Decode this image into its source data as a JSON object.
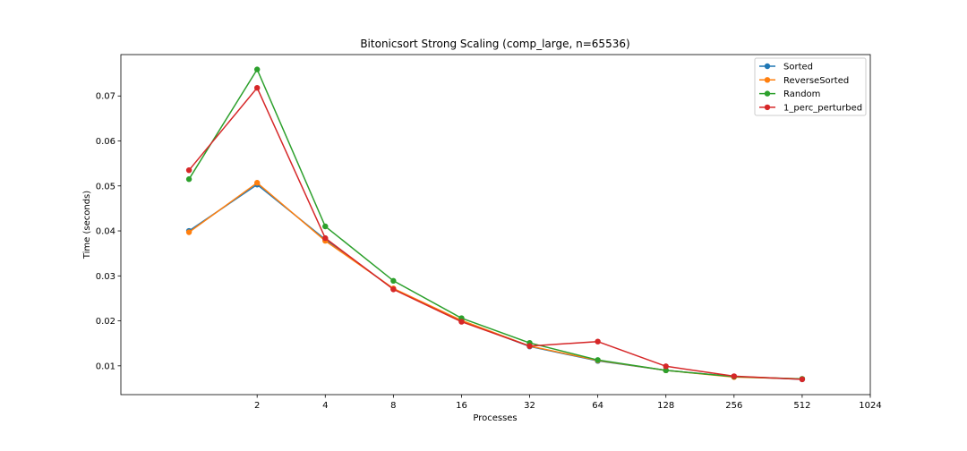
{
  "chart_data": {
    "type": "line",
    "title": "Bitonicsort Strong Scaling (comp_large, n=65536)",
    "xlabel": "Processes",
    "ylabel": "Time (seconds)",
    "x_scale": "log2",
    "xlim": [
      0.5,
      1024
    ],
    "ylim": [
      0.0036,
      0.0792
    ],
    "x_ticks": [
      2,
      4,
      8,
      16,
      32,
      64,
      128,
      256,
      512,
      1024
    ],
    "x_tick_labels": [
      "2",
      "4",
      "8",
      "16",
      "32",
      "64",
      "128",
      "256",
      "512",
      "1024"
    ],
    "y_ticks": [
      0.01,
      0.02,
      0.03,
      0.04,
      0.05,
      0.06,
      0.07
    ],
    "y_tick_labels": [
      "0.01",
      "0.02",
      "0.03",
      "0.04",
      "0.05",
      "0.06",
      "0.07"
    ],
    "grid": false,
    "legend_position": "top-right",
    "x": [
      1,
      2,
      4,
      8,
      16,
      32,
      64,
      128,
      256,
      512
    ],
    "series": [
      {
        "name": "Sorted",
        "color": "#1f77b4",
        "values": [
          0.04,
          0.0503,
          0.0381,
          0.0271,
          0.02,
          0.0143,
          0.0111,
          0.009,
          0.0076,
          0.007
        ]
      },
      {
        "name": "ReverseSorted",
        "color": "#ff7f0e",
        "values": [
          0.0397,
          0.0507,
          0.0378,
          0.0272,
          0.0201,
          0.0144,
          0.0112,
          0.009,
          0.0075,
          0.0071
        ]
      },
      {
        "name": "Random",
        "color": "#2ca02c",
        "values": [
          0.0515,
          0.0759,
          0.041,
          0.0289,
          0.0206,
          0.0151,
          0.0113,
          0.009,
          0.0076,
          0.0071
        ]
      },
      {
        "name": "1_perc_perturbed",
        "color": "#d62728",
        "values": [
          0.0535,
          0.0718,
          0.0384,
          0.027,
          0.0198,
          0.0144,
          0.0154,
          0.0099,
          0.0077,
          0.007
        ]
      }
    ]
  }
}
